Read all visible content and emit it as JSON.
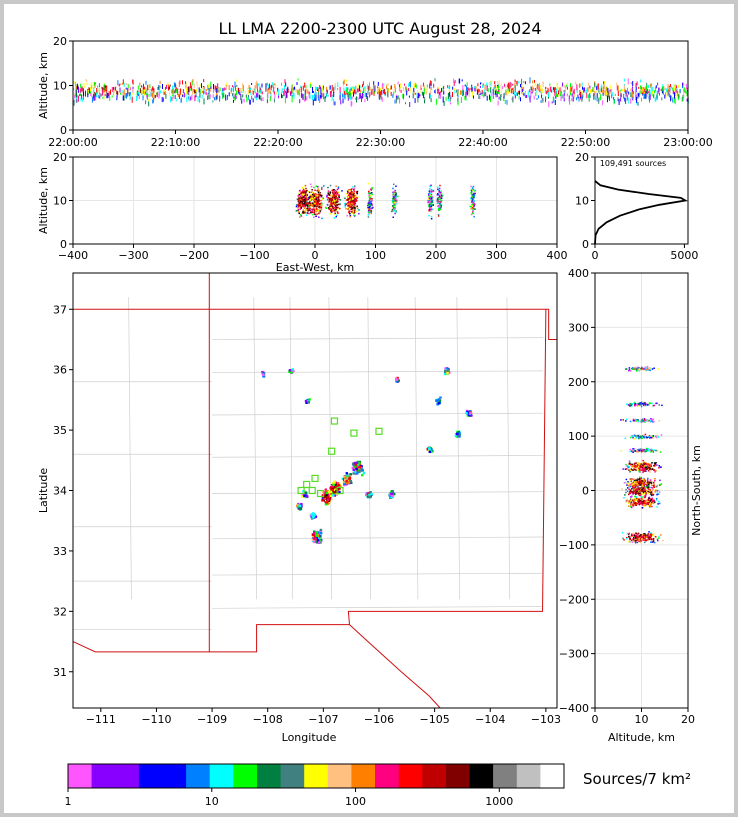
{
  "chart_data": {
    "type": "heatmap",
    "title": "LL LMA 2200-2300 UTC August 28, 2024",
    "panels": {
      "time_altitude": {
        "ylabel": "Altitude, km",
        "ylim": [
          0,
          20
        ],
        "yticks": [
          "0",
          "10",
          "20"
        ],
        "xticks": [
          "22:00:00",
          "22:10:00",
          "22:20:00",
          "22:30:00",
          "22:40:00",
          "22:50:00",
          "23:00:00"
        ],
        "xlim_minutes": [
          0,
          60
        ]
      },
      "ew_altitude": {
        "ylabel": "Altitude, km",
        "xlabel": "East-West, km",
        "xlim": [
          -400,
          400
        ],
        "ylim": [
          0,
          20
        ],
        "xticks": [
          "−400",
          "−300",
          "−200",
          "−100",
          "0",
          "100",
          "200",
          "300",
          "400"
        ],
        "yticks": [
          "0",
          "10",
          "20"
        ],
        "ew_clusters_km": [
          -20,
          0,
          30,
          60,
          90,
          130,
          190,
          205,
          260
        ]
      },
      "histogram": {
        "annotation": "109,491 sources",
        "xticks": [
          "0",
          "5000"
        ],
        "yticks": [
          "0",
          "10",
          "20"
        ],
        "xlim": [
          0,
          5200
        ],
        "ylim": [
          0,
          20
        ],
        "profile": [
          {
            "alt": 0,
            "count": 0
          },
          {
            "alt": 2,
            "count": 30
          },
          {
            "alt": 3.5,
            "count": 200
          },
          {
            "alt": 5,
            "count": 650
          },
          {
            "alt": 6.5,
            "count": 1400
          },
          {
            "alt": 8,
            "count": 2500
          },
          {
            "alt": 9,
            "count": 3600
          },
          {
            "alt": 10,
            "count": 5050
          },
          {
            "alt": 10.6,
            "count": 4800
          },
          {
            "alt": 11.5,
            "count": 3000
          },
          {
            "alt": 12.5,
            "count": 1300
          },
          {
            "alt": 13.5,
            "count": 300
          },
          {
            "alt": 14.5,
            "count": 0
          }
        ]
      },
      "plan_view": {
        "xlabel": "Longitude",
        "ylabel": "Latitude",
        "xlim": [
          -111.5,
          -102.8
        ],
        "ylim": [
          30.4,
          37.6
        ],
        "xticks": [
          "−111",
          "−110",
          "−109",
          "−108",
          "−107",
          "−106",
          "−105",
          "−104",
          "−103"
        ],
        "yticks": [
          "31",
          "32",
          "33",
          "34",
          "35",
          "36",
          "37"
        ],
        "cells": [
          {
            "lon": -106.8,
            "lat": 34.05,
            "intensity": 3
          },
          {
            "lon": -106.95,
            "lat": 33.9,
            "intensity": 3
          },
          {
            "lon": -106.6,
            "lat": 34.2,
            "intensity": 2
          },
          {
            "lon": -106.4,
            "lat": 34.4,
            "intensity": 2
          },
          {
            "lon": -107.15,
            "lat": 33.25,
            "intensity": 2
          },
          {
            "lon": -107.2,
            "lat": 33.6,
            "intensity": 1
          },
          {
            "lon": -107.45,
            "lat": 33.75,
            "intensity": 1
          },
          {
            "lon": -107.35,
            "lat": 33.95,
            "intensity": 1
          },
          {
            "lon": -105.8,
            "lat": 33.95,
            "intensity": 1
          },
          {
            "lon": -106.2,
            "lat": 33.95,
            "intensity": 1
          },
          {
            "lon": -105.1,
            "lat": 34.7,
            "intensity": 1
          },
          {
            "lon": -104.6,
            "lat": 34.95,
            "intensity": 1
          },
          {
            "lon": -104.4,
            "lat": 35.3,
            "intensity": 1
          },
          {
            "lon": -104.95,
            "lat": 35.5,
            "intensity": 1
          },
          {
            "lon": -104.8,
            "lat": 36.0,
            "intensity": 1
          },
          {
            "lon": -107.3,
            "lat": 35.5,
            "intensity": 0
          },
          {
            "lon": -107.6,
            "lat": 36.0,
            "intensity": 0
          },
          {
            "lon": -108.1,
            "lat": 35.95,
            "intensity": 0
          },
          {
            "lon": -105.7,
            "lat": 35.85,
            "intensity": 0
          }
        ],
        "stations": [
          {
            "lon": -106.8,
            "lat": 35.15
          },
          {
            "lon": -106.45,
            "lat": 34.95
          },
          {
            "lon": -106.0,
            "lat": 34.98
          },
          {
            "lon": -106.85,
            "lat": 34.65
          },
          {
            "lon": -107.15,
            "lat": 34.2
          },
          {
            "lon": -107.3,
            "lat": 34.1
          },
          {
            "lon": -107.4,
            "lat": 34.0
          },
          {
            "lon": -107.2,
            "lat": 34.0
          },
          {
            "lon": -107.05,
            "lat": 33.95
          },
          {
            "lon": -106.7,
            "lat": 34.0
          }
        ]
      },
      "ns_altitude": {
        "xlabel": "Altitude, km",
        "ylabel": "North-South, km",
        "xlim": [
          0,
          20
        ],
        "ylim": [
          -400,
          400
        ],
        "xticks": [
          "0",
          "10",
          "20"
        ],
        "yticks": [
          "−400",
          "−300",
          "−200",
          "−100",
          "0",
          "100",
          "200",
          "300",
          "400"
        ],
        "ns_clusters_km": [
          225,
          160,
          130,
          100,
          75,
          45,
          15,
          0,
          -20,
          -85
        ]
      }
    },
    "colorbar": {
      "label": "Sources/7 km²",
      "scale": "log",
      "ticks": [
        "1",
        "10",
        "100",
        "1000"
      ],
      "colors": [
        "#ff55ff",
        "#8800ff",
        "#8800ff",
        "#0000ff",
        "#0000ff",
        "#0080ff",
        "#00ffff",
        "#00ff00",
        "#008040",
        "#408080",
        "#ffff00",
        "#ffc080",
        "#ff8000",
        "#ff0080",
        "#ff0000",
        "#c00000",
        "#800000",
        "#000000",
        "#808080",
        "#c0c0c0",
        "#ffffff"
      ]
    }
  }
}
